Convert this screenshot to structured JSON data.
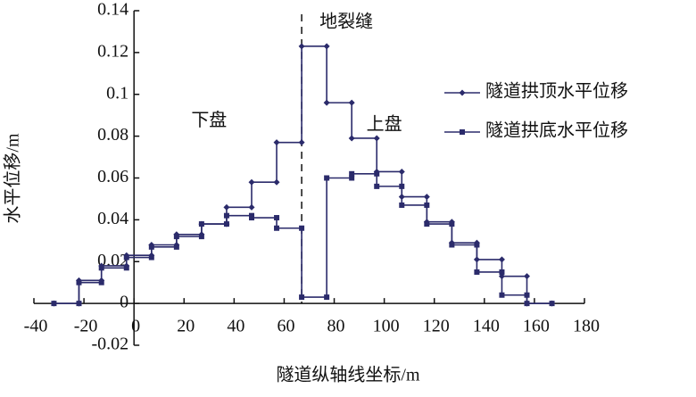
{
  "chart_data": {
    "type": "line",
    "x": [
      -32,
      -22,
      -22,
      -13,
      -13,
      -3,
      -3,
      7,
      7,
      17,
      17,
      27,
      27,
      37,
      37,
      47,
      47,
      57,
      57,
      67,
      67,
      77,
      77,
      87,
      87,
      97,
      97,
      107,
      107,
      117,
      117,
      127,
      127,
      137,
      137,
      147,
      147,
      157,
      157,
      167
    ],
    "series": [
      {
        "name": "隧道拱顶水平位移",
        "color": "#2b2b6b",
        "marker": "diamond",
        "values": [
          0,
          0,
          0.011,
          0.011,
          0.018,
          0.018,
          0.023,
          0.023,
          0.028,
          0.028,
          0.033,
          0.033,
          0.038,
          0.038,
          0.046,
          0.046,
          0.058,
          0.058,
          0.077,
          0.077,
          0.123,
          0.123,
          0.096,
          0.096,
          0.079,
          0.079,
          0.063,
          0.063,
          0.051,
          0.051,
          0.039,
          0.039,
          0.029,
          0.029,
          0.021,
          0.021,
          0.013,
          0.013,
          0,
          0
        ]
      },
      {
        "name": "隧道拱底水平位移",
        "color": "#2b2b6b",
        "marker": "square",
        "values": [
          0,
          0,
          0.01,
          0.01,
          0.017,
          0.017,
          0.022,
          0.022,
          0.027,
          0.027,
          0.032,
          0.032,
          0.038,
          0.038,
          0.042,
          0.042,
          0.041,
          0.041,
          0.036,
          0.036,
          0.003,
          0.003,
          0.06,
          0.06,
          0.062,
          0.062,
          0.056,
          0.056,
          0.047,
          0.047,
          0.038,
          0.038,
          0.028,
          0.028,
          0.015,
          0.015,
          0.004,
          0.004,
          0,
          0
        ]
      }
    ],
    "xlabel": "隧道纵轴线坐标/m",
    "ylabel": "水平位移/m",
    "xlim": [
      -40,
      180
    ],
    "xticks": [
      -40,
      -20,
      0,
      20,
      40,
      60,
      80,
      100,
      120,
      140,
      160,
      180
    ],
    "ylim": [
      -0.02,
      0.14
    ],
    "yticks": [
      -0.02,
      0,
      0.02,
      0.04,
      0.06,
      0.08,
      0.1,
      0.12,
      0.14
    ],
    "fault": {
      "x": 67,
      "label": "地裂缝"
    },
    "annotations": [
      {
        "text": "下盘",
        "x": 30,
        "y": 0.087
      },
      {
        "text": "上盘",
        "x": 100,
        "y": 0.085
      }
    ],
    "legend": "right"
  }
}
